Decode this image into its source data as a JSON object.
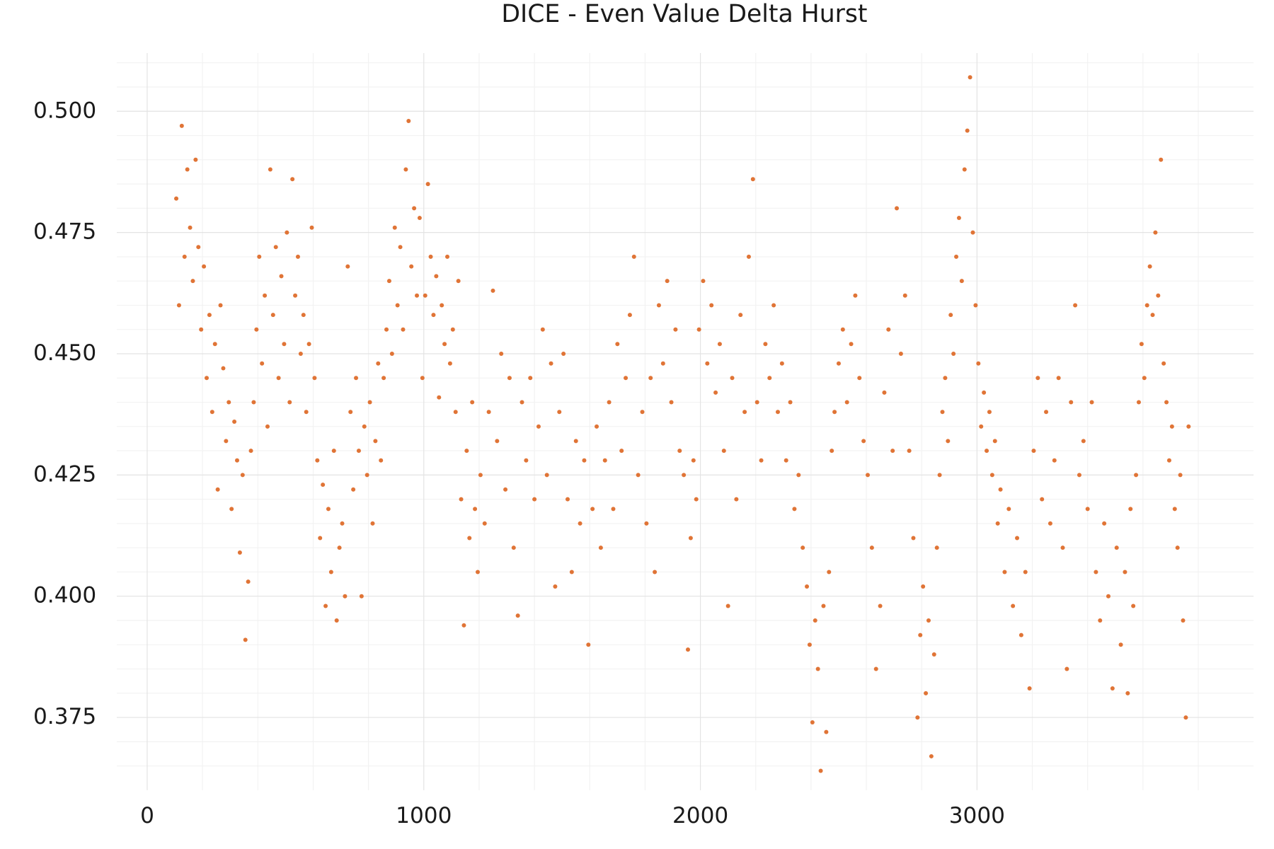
{
  "chart_data": {
    "type": "scatter",
    "title": "DICE - Even Value Delta Hurst",
    "color": "#e07436",
    "grid": true,
    "xlim": [
      -110,
      4000
    ],
    "ylim": [
      0.36,
      0.512
    ],
    "xticks": [
      0,
      1000,
      2000,
      3000
    ],
    "yticks": [
      {
        "value": 0.375,
        "label": "0.375"
      },
      {
        "value": 0.4,
        "label": "0.400"
      },
      {
        "value": 0.425,
        "label": "0.425"
      },
      {
        "value": 0.45,
        "label": "0.450"
      },
      {
        "value": 0.475,
        "label": "0.475"
      },
      {
        "value": 0.5,
        "label": "0.500"
      }
    ],
    "x_minor_grid": [
      200,
      400,
      600,
      800,
      1200,
      1400,
      1600,
      1800,
      2200,
      2400,
      2600,
      2800,
      3200,
      3400,
      3600,
      3800
    ],
    "y_minor_grid": [
      0.365,
      0.37,
      0.38,
      0.385,
      0.39,
      0.395,
      0.405,
      0.41,
      0.415,
      0.42,
      0.43,
      0.435,
      0.44,
      0.445,
      0.455,
      0.46,
      0.465,
      0.47,
      0.48,
      0.485,
      0.49,
      0.495,
      0.505,
      0.51
    ],
    "x": [
      105,
      115,
      125,
      135,
      145,
      155,
      165,
      175,
      185,
      195,
      205,
      215,
      225,
      235,
      245,
      255,
      265,
      275,
      285,
      295,
      305,
      315,
      325,
      335,
      345,
      355,
      365,
      375,
      385,
      395,
      405,
      415,
      425,
      435,
      445,
      455,
      465,
      475,
      485,
      495,
      505,
      515,
      525,
      535,
      545,
      555,
      565,
      575,
      585,
      595,
      605,
      615,
      625,
      635,
      645,
      655,
      665,
      675,
      685,
      695,
      705,
      715,
      725,
      735,
      745,
      755,
      765,
      775,
      785,
      795,
      805,
      815,
      825,
      835,
      845,
      855,
      865,
      875,
      885,
      895,
      905,
      915,
      925,
      935,
      945,
      955,
      965,
      975,
      985,
      995,
      1005,
      1015,
      1025,
      1035,
      1045,
      1055,
      1065,
      1075,
      1085,
      1095,
      1105,
      1115,
      1125,
      1135,
      1145,
      1155,
      1165,
      1175,
      1185,
      1195,
      1205,
      1220,
      1235,
      1250,
      1265,
      1280,
      1295,
      1310,
      1325,
      1340,
      1355,
      1370,
      1385,
      1400,
      1415,
      1430,
      1445,
      1460,
      1475,
      1490,
      1505,
      1520,
      1535,
      1550,
      1565,
      1580,
      1595,
      1610,
      1625,
      1640,
      1655,
      1670,
      1685,
      1700,
      1715,
      1730,
      1745,
      1760,
      1775,
      1790,
      1805,
      1820,
      1835,
      1850,
      1865,
      1880,
      1895,
      1910,
      1925,
      1940,
      1955,
      1965,
      1975,
      1985,
      1995,
      2010,
      2025,
      2040,
      2055,
      2070,
      2085,
      2100,
      2115,
      2130,
      2145,
      2160,
      2175,
      2190,
      2205,
      2220,
      2235,
      2250,
      2265,
      2280,
      2295,
      2310,
      2325,
      2340,
      2355,
      2370,
      2385,
      2395,
      2405,
      2415,
      2425,
      2435,
      2445,
      2455,
      2465,
      2475,
      2485,
      2500,
      2515,
      2530,
      2545,
      2560,
      2575,
      2590,
      2605,
      2620,
      2635,
      2650,
      2665,
      2680,
      2695,
      2710,
      2725,
      2740,
      2755,
      2770,
      2785,
      2795,
      2805,
      2815,
      2825,
      2835,
      2845,
      2855,
      2865,
      2875,
      2885,
      2895,
      2905,
      2915,
      2925,
      2935,
      2945,
      2955,
      2965,
      2975,
      2985,
      2995,
      3005,
      3015,
      3025,
      3035,
      3045,
      3055,
      3065,
      3075,
      3085,
      3100,
      3115,
      3130,
      3145,
      3160,
      3175,
      3190,
      3205,
      3220,
      3235,
      3250,
      3265,
      3280,
      3295,
      3310,
      3325,
      3340,
      3355,
      3370,
      3385,
      3400,
      3415,
      3430,
      3445,
      3460,
      3475,
      3490,
      3505,
      3520,
      3535,
      3545,
      3555,
      3565,
      3575,
      3585,
      3595,
      3605,
      3615,
      3625,
      3635,
      3645,
      3655,
      3665,
      3675,
      3685,
      3695,
      3705,
      3715,
      3725,
      3735,
      3745,
      3755,
      3765
    ],
    "values": [
      0.482,
      0.46,
      0.497,
      0.47,
      0.488,
      0.476,
      0.465,
      0.49,
      0.472,
      0.455,
      0.468,
      0.445,
      0.458,
      0.438,
      0.452,
      0.422,
      0.46,
      0.447,
      0.432,
      0.44,
      0.418,
      0.436,
      0.428,
      0.409,
      0.425,
      0.391,
      0.403,
      0.43,
      0.44,
      0.455,
      0.47,
      0.448,
      0.462,
      0.435,
      0.488,
      0.458,
      0.472,
      0.445,
      0.466,
      0.452,
      0.475,
      0.44,
      0.486,
      0.462,
      0.47,
      0.45,
      0.458,
      0.438,
      0.452,
      0.476,
      0.445,
      0.428,
      0.412,
      0.423,
      0.398,
      0.418,
      0.405,
      0.43,
      0.395,
      0.41,
      0.415,
      0.4,
      0.468,
      0.438,
      0.422,
      0.445,
      0.43,
      0.4,
      0.435,
      0.425,
      0.44,
      0.415,
      0.432,
      0.448,
      0.428,
      0.445,
      0.455,
      0.465,
      0.45,
      0.476,
      0.46,
      0.472,
      0.455,
      0.488,
      0.498,
      0.468,
      0.48,
      0.462,
      0.478,
      0.445,
      0.462,
      0.485,
      0.47,
      0.458,
      0.466,
      0.441,
      0.46,
      0.452,
      0.47,
      0.448,
      0.455,
      0.438,
      0.465,
      0.42,
      0.394,
      0.43,
      0.412,
      0.44,
      0.418,
      0.405,
      0.425,
      0.415,
      0.438,
      0.463,
      0.432,
      0.45,
      0.422,
      0.445,
      0.41,
      0.396,
      0.44,
      0.428,
      0.445,
      0.42,
      0.435,
      0.455,
      0.425,
      0.448,
      0.402,
      0.438,
      0.45,
      0.42,
      0.405,
      0.432,
      0.415,
      0.428,
      0.39,
      0.418,
      0.435,
      0.41,
      0.428,
      0.44,
      0.418,
      0.452,
      0.43,
      0.445,
      0.458,
      0.47,
      0.425,
      0.438,
      0.415,
      0.445,
      0.405,
      0.46,
      0.448,
      0.465,
      0.44,
      0.455,
      0.43,
      0.425,
      0.389,
      0.412,
      0.428,
      0.42,
      0.455,
      0.465,
      0.448,
      0.46,
      0.442,
      0.452,
      0.43,
      0.398,
      0.445,
      0.42,
      0.458,
      0.438,
      0.47,
      0.486,
      0.44,
      0.428,
      0.452,
      0.445,
      0.46,
      0.438,
      0.448,
      0.428,
      0.44,
      0.418,
      0.425,
      0.41,
      0.402,
      0.39,
      0.374,
      0.395,
      0.385,
      0.364,
      0.398,
      0.372,
      0.405,
      0.43,
      0.438,
      0.448,
      0.455,
      0.44,
      0.452,
      0.462,
      0.445,
      0.432,
      0.425,
      0.41,
      0.385,
      0.398,
      0.442,
      0.455,
      0.43,
      0.48,
      0.45,
      0.462,
      0.43,
      0.412,
      0.375,
      0.392,
      0.402,
      0.38,
      0.395,
      0.367,
      0.388,
      0.41,
      0.425,
      0.438,
      0.445,
      0.432,
      0.458,
      0.45,
      0.47,
      0.478,
      0.465,
      0.488,
      0.496,
      0.507,
      0.475,
      0.46,
      0.448,
      0.435,
      0.442,
      0.43,
      0.438,
      0.425,
      0.432,
      0.415,
      0.422,
      0.405,
      0.418,
      0.398,
      0.412,
      0.392,
      0.405,
      0.381,
      0.43,
      0.445,
      0.42,
      0.438,
      0.415,
      0.428,
      0.445,
      0.41,
      0.385,
      0.44,
      0.46,
      0.425,
      0.432,
      0.418,
      0.44,
      0.405,
      0.395,
      0.415,
      0.4,
      0.381,
      0.41,
      0.39,
      0.405,
      0.38,
      0.418,
      0.398,
      0.425,
      0.44,
      0.452,
      0.445,
      0.46,
      0.468,
      0.458,
      0.475,
      0.462,
      0.49,
      0.448,
      0.44,
      0.428,
      0.435,
      0.418,
      0.41,
      0.425,
      0.395,
      0.375,
      0.435
    ]
  }
}
